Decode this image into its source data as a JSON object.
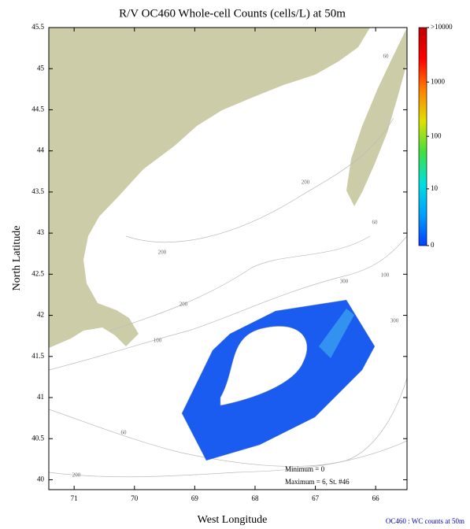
{
  "chart_data": {
    "type": "map",
    "title": "R/V OC460 Whole-cell Counts (cells/L) at 50m",
    "x_label": "West Longitude",
    "y_label": "North Latitude",
    "xlim": [
      71.42,
      65.48
    ],
    "ylim": [
      39.88,
      45.5
    ],
    "xticks": [
      71,
      70,
      69,
      68,
      67,
      66
    ],
    "yticks": [
      45.5,
      45,
      44.5,
      44,
      43.5,
      43,
      42.5,
      42,
      41.5,
      41,
      40.5,
      40
    ],
    "colorbar": {
      "ticks": [
        {
          "value": 10000,
          "label": ">10000"
        },
        1000,
        100,
        10,
        0
      ],
      "colors": [
        "#0040ff",
        "#00a0ff",
        "#00e0e0",
        "#40e040",
        "#e0e000",
        "#ff8000",
        "#ff0000",
        "#c00000"
      ]
    },
    "contour_labels": [
      60,
      200,
      60,
      200,
      100,
      300,
      200,
      300,
      100,
      60,
      200
    ],
    "annotations": [
      "Minimum = 0",
      "Maximum = 6, St. #46"
    ],
    "footer": "OC460 : WC counts at 50m"
  }
}
